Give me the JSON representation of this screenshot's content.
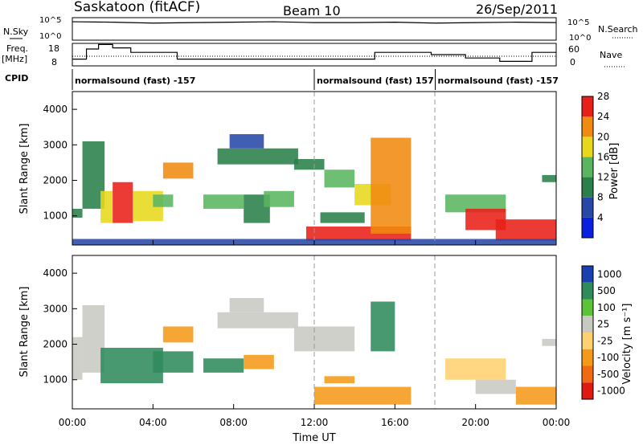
{
  "header": {
    "station": "Saskatoon (fitACF)",
    "beam": "Beam 10",
    "date": "26/Sep/2011"
  },
  "strip_labels": {
    "nsky": "N.Sky",
    "nsearch": "N.Search",
    "freq_line1": "Freq.",
    "freq_line2": "[MHz]",
    "nave": "Nave",
    "cpid": "CPID"
  },
  "strip_ticks": {
    "nsky_top": "10^5",
    "nsky_bottom": "10^0",
    "nsearch_top": "10^5",
    "nsearch_bottom": "10^0",
    "freq_top": "18",
    "freq_bottom": "8",
    "nave_top": "60",
    "nave_bottom": "0"
  },
  "cpid_segments": [
    {
      "label": "normalsound (fast) -157",
      "start_hour": 0,
      "end_hour": 12
    },
    {
      "label": "normalsound (fast) 157",
      "start_hour": 12,
      "end_hour": 18
    },
    {
      "label": "normalsound (fast) -157",
      "start_hour": 18,
      "end_hour": 24
    }
  ],
  "power_panel": {
    "ylabel": "Slant Range [km]",
    "colorbar_label": "Power [dB]",
    "colorbar_ticks": [
      "4",
      "8",
      "12",
      "16",
      "20",
      "24",
      "28"
    ],
    "colorbar_colors": [
      "#0a1fe0",
      "#2848a8",
      "#2a7f4a",
      "#5ab560",
      "#e8d81c",
      "#f08a10",
      "#e82018"
    ]
  },
  "velocity_panel": {
    "ylabel": "Slant Range [km]",
    "colorbar_label": "Velocity [m s⁻¹]",
    "colorbar_ticks": [
      "1000",
      "500",
      "100",
      "25",
      "-25",
      "-100",
      "-500",
      "-1000"
    ],
    "colorbar_colors": [
      "#1a3fb0",
      "#2f8a5c",
      "#5cc23a",
      "#c9c9c4",
      "#ffd070",
      "#f49a18",
      "#ef6a10",
      "#e01a10"
    ]
  },
  "xaxis": {
    "label": "Time UT",
    "ticks": [
      "00:00",
      "04:00",
      "08:00",
      "12:00",
      "16:00",
      "20:00",
      "00:00"
    ]
  },
  "chart_data": [
    {
      "type": "line",
      "title": "N.Sky / N.Search",
      "x": [
        0,
        2,
        4,
        6,
        8,
        10,
        12,
        14,
        16,
        18,
        20,
        22,
        24
      ],
      "series": [
        {
          "name": "N.Sky",
          "values": [
            4.1,
            4.0,
            3.8,
            3.9,
            4.0,
            4.1,
            3.9,
            3.9,
            4.0,
            3.8,
            3.9,
            4.0,
            3.9
          ]
        }
      ],
      "ylim": [
        0,
        5
      ]
    },
    {
      "type": "line",
      "title": "Freq. [MHz] / Nave",
      "x": [
        0,
        0.7,
        1.3,
        2.0,
        2.9,
        5.2,
        6.6,
        12.5,
        15.0,
        17.8,
        19.5,
        21.2,
        22.8,
        24
      ],
      "series": [
        {
          "name": "Freq.",
          "values": [
            11,
            15.5,
            17.5,
            16,
            14,
            11,
            11,
            11,
            14,
            13,
            11.5,
            10,
            14,
            14
          ]
        }
      ],
      "ylim": [
        8,
        18
      ]
    },
    {
      "type": "heatmap",
      "title": "Power",
      "xlabel": "Time UT",
      "ylabel": "Slant Range [km]",
      "xlim": [
        0,
        24
      ],
      "ylim": [
        180,
        4500
      ],
      "yticks": [
        1000,
        2000,
        3000,
        4000
      ],
      "value_unit": "dB",
      "regions": [
        {
          "t0": 0.0,
          "t1": 0.5,
          "r0": 950,
          "r1": 1200,
          "v": 12
        },
        {
          "t0": 0.5,
          "t1": 1.6,
          "r0": 1200,
          "r1": 3100,
          "v": 10
        },
        {
          "t0": 1.4,
          "t1": 2.0,
          "r0": 800,
          "r1": 1700,
          "v": 20
        },
        {
          "t0": 2.0,
          "t1": 3.0,
          "r0": 800,
          "r1": 1950,
          "v": 28
        },
        {
          "t0": 3.0,
          "t1": 4.5,
          "r0": 850,
          "r1": 1700,
          "v": 20
        },
        {
          "t0": 4.0,
          "t1": 5.0,
          "r0": 1250,
          "r1": 1600,
          "v": 14
        },
        {
          "t0": 4.5,
          "t1": 6.0,
          "r0": 2050,
          "r1": 2500,
          "v": 22
        },
        {
          "t0": 6.5,
          "t1": 8.5,
          "r0": 1200,
          "r1": 1600,
          "v": 14
        },
        {
          "t0": 8.5,
          "t1": 9.8,
          "r0": 800,
          "r1": 1600,
          "v": 12
        },
        {
          "t0": 9.5,
          "t1": 11.0,
          "r0": 1250,
          "r1": 1700,
          "v": 14
        },
        {
          "t0": 7.2,
          "t1": 11.2,
          "r0": 2450,
          "r1": 2900,
          "v": 12
        },
        {
          "t0": 7.8,
          "t1": 9.5,
          "r0": 2900,
          "r1": 3300,
          "v": 6
        },
        {
          "t0": 11.0,
          "t1": 12.5,
          "r0": 2300,
          "r1": 2600,
          "v": 12
        },
        {
          "t0": 12.5,
          "t1": 14.0,
          "r0": 1800,
          "r1": 2300,
          "v": 14
        },
        {
          "t0": 14.0,
          "t1": 15.8,
          "r0": 1300,
          "r1": 1900,
          "v": 18
        },
        {
          "t0": 11.6,
          "t1": 16.8,
          "r0": 300,
          "r1": 700,
          "v": 28
        },
        {
          "t0": 12.3,
          "t1": 14.5,
          "r0": 800,
          "r1": 1100,
          "v": 12
        },
        {
          "t0": 14.8,
          "t1": 16.8,
          "r0": 500,
          "r1": 3200,
          "v": 22
        },
        {
          "t0": 18.5,
          "t1": 21.5,
          "r0": 1100,
          "r1": 1600,
          "v": 14
        },
        {
          "t0": 19.5,
          "t1": 21.5,
          "r0": 600,
          "r1": 1200,
          "v": 28
        },
        {
          "t0": 21.0,
          "t1": 24.0,
          "r0": 300,
          "r1": 900,
          "v": 28
        },
        {
          "t0": 23.3,
          "t1": 24.0,
          "r0": 1950,
          "r1": 2150,
          "v": 10
        },
        {
          "t0": 0.0,
          "t1": 24.0,
          "r0": 180,
          "r1": 350,
          "v": 8
        }
      ]
    },
    {
      "type": "heatmap",
      "title": "Velocity",
      "xlabel": "Time UT",
      "ylabel": "Slant Range [km]",
      "xlim": [
        0,
        24
      ],
      "ylim": [
        180,
        4500
      ],
      "yticks": [
        1000,
        2000,
        3000,
        4000
      ],
      "value_unit": "m s⁻¹",
      "regions": [
        {
          "t0": 0.0,
          "t1": 0.5,
          "r0": 1000,
          "r1": 2200,
          "v": 0
        },
        {
          "t0": 0.5,
          "t1": 1.6,
          "r0": 1200,
          "r1": 3100,
          "v": 50
        },
        {
          "t0": 1.4,
          "t1": 4.5,
          "r0": 900,
          "r1": 1900,
          "v": 300
        },
        {
          "t0": 4.0,
          "t1": 6.0,
          "r0": 1200,
          "r1": 1800,
          "v": 300
        },
        {
          "t0": 4.5,
          "t1": 6.0,
          "r0": 2050,
          "r1": 2500,
          "v": -300
        },
        {
          "t0": 6.5,
          "t1": 8.5,
          "r0": 1200,
          "r1": 1600,
          "v": 300
        },
        {
          "t0": 8.5,
          "t1": 10.0,
          "r0": 1300,
          "r1": 1700,
          "v": -300
        },
        {
          "t0": 7.2,
          "t1": 11.2,
          "r0": 2450,
          "r1": 2900,
          "v": 0
        },
        {
          "t0": 7.8,
          "t1": 9.5,
          "r0": 2900,
          "r1": 3300,
          "v": 0
        },
        {
          "t0": 11.0,
          "t1": 14.0,
          "r0": 1800,
          "r1": 2500,
          "v": 0
        },
        {
          "t0": 14.8,
          "t1": 16.0,
          "r0": 1800,
          "r1": 3200,
          "v": 600
        },
        {
          "t0": 12.0,
          "t1": 16.8,
          "r0": 300,
          "r1": 800,
          "v": -100
        },
        {
          "t0": 12.5,
          "t1": 14.0,
          "r0": 900,
          "r1": 1100,
          "v": -300
        },
        {
          "t0": 18.5,
          "t1": 21.5,
          "r0": 1000,
          "r1": 1600,
          "v": -50
        },
        {
          "t0": 20.0,
          "t1": 22.0,
          "r0": 600,
          "r1": 1000,
          "v": 50
        },
        {
          "t0": 22.0,
          "t1": 24.0,
          "r0": 300,
          "r1": 800,
          "v": -100
        },
        {
          "t0": 23.3,
          "t1": 24.0,
          "r0": 1950,
          "r1": 2150,
          "v": 0
        }
      ]
    }
  ]
}
